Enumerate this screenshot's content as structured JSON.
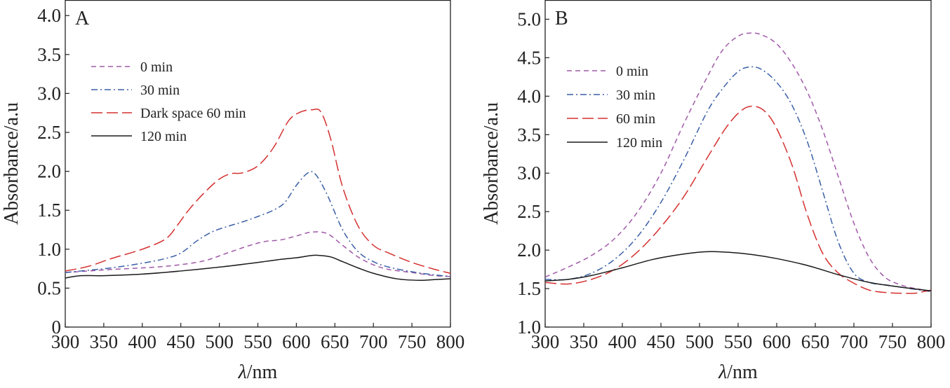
{
  "chart_data": [
    {
      "type": "line",
      "panel_label": "A",
      "xlabel_symbol": "λ",
      "xlabel_unit": "/nm",
      "ylabel": "Absorbance/a.u",
      "xlim": [
        300,
        800
      ],
      "ylim": [
        0,
        4.2
      ],
      "xticks": [
        300,
        350,
        400,
        450,
        500,
        550,
        600,
        650,
        700,
        750,
        800
      ],
      "xtick_labels": [
        "300",
        "350",
        "400",
        "450",
        "500",
        "550",
        "600",
        "650",
        "700",
        "750",
        "800"
      ],
      "yticks": [
        0,
        0.5,
        1.0,
        1.5,
        2.0,
        2.5,
        3.0,
        3.5,
        4.0
      ],
      "ytick_labels": [
        "0",
        "0.5",
        "1.0",
        "1.5",
        "2.0",
        "2.5",
        "3.0",
        "3.5",
        "4.0"
      ],
      "grid": false,
      "legend_position": "upper-left",
      "series": [
        {
          "name": "0 min",
          "color": "#a05aa8",
          "dash": "dashed",
          "x": [
            300,
            330,
            360,
            400,
            440,
            480,
            510,
            540,
            560,
            580,
            600,
            620,
            640,
            660,
            680,
            700,
            720,
            750,
            780,
            800
          ],
          "y": [
            0.7,
            0.72,
            0.74,
            0.76,
            0.79,
            0.85,
            0.95,
            1.05,
            1.1,
            1.12,
            1.17,
            1.22,
            1.2,
            1.05,
            0.9,
            0.8,
            0.74,
            0.7,
            0.66,
            0.65
          ]
        },
        {
          "name": "30 min",
          "color": "#3a5fa6",
          "dash": "dashdot",
          "x": [
            300,
            330,
            360,
            400,
            430,
            450,
            470,
            490,
            510,
            530,
            550,
            570,
            585,
            600,
            615,
            625,
            640,
            660,
            680,
            700,
            720,
            750,
            780,
            800
          ],
          "y": [
            0.7,
            0.73,
            0.76,
            0.82,
            0.88,
            0.95,
            1.1,
            1.22,
            1.29,
            1.35,
            1.42,
            1.5,
            1.6,
            1.82,
            1.98,
            1.96,
            1.7,
            1.25,
            0.97,
            0.84,
            0.77,
            0.71,
            0.67,
            0.65
          ]
        },
        {
          "name": "Dark space 60 min",
          "color": "#d4302f",
          "dash": "longdash",
          "x": [
            300,
            330,
            360,
            400,
            430,
            445,
            460,
            480,
            500,
            515,
            530,
            550,
            570,
            590,
            605,
            620,
            632,
            645,
            660,
            680,
            700,
            720,
            750,
            780,
            800
          ],
          "y": [
            0.72,
            0.78,
            0.88,
            1.0,
            1.13,
            1.3,
            1.5,
            1.72,
            1.9,
            1.97,
            1.98,
            2.07,
            2.3,
            2.65,
            2.76,
            2.79,
            2.76,
            2.4,
            1.8,
            1.3,
            1.05,
            0.95,
            0.83,
            0.74,
            0.69
          ]
        },
        {
          "name": "120 min",
          "color": "#1a1a1a",
          "dash": "solid",
          "x": [
            300,
            320,
            350,
            400,
            450,
            500,
            550,
            580,
            600,
            620,
            630,
            645,
            660,
            680,
            700,
            730,
            760,
            780,
            800
          ],
          "y": [
            0.63,
            0.66,
            0.66,
            0.68,
            0.72,
            0.77,
            0.83,
            0.87,
            0.89,
            0.92,
            0.92,
            0.9,
            0.84,
            0.76,
            0.69,
            0.62,
            0.6,
            0.61,
            0.62
          ]
        }
      ]
    },
    {
      "type": "line",
      "panel_label": "B",
      "xlabel_symbol": "λ",
      "xlabel_unit": "/nm",
      "ylabel": "Absorbance/a.u",
      "xlim": [
        300,
        800
      ],
      "ylim": [
        1.0,
        5.25
      ],
      "xticks": [
        300,
        350,
        400,
        450,
        500,
        550,
        600,
        650,
        700,
        750,
        800
      ],
      "xtick_labels": [
        "300",
        "350",
        "400",
        "450",
        "500",
        "550",
        "600",
        "650",
        "700",
        "750",
        "800"
      ],
      "yticks": [
        1.0,
        1.5,
        2.0,
        2.5,
        3.0,
        3.5,
        4.0,
        4.5,
        5.0
      ],
      "ytick_labels": [
        "1.0",
        "1.5",
        "2.0",
        "2.5",
        "3.0",
        "3.5",
        "4.0",
        "4.5",
        "5.0"
      ],
      "grid": false,
      "legend_position": "upper-left",
      "series": [
        {
          "name": "0 min",
          "color": "#a05aa8",
          "dash": "dashed",
          "x": [
            300,
            330,
            360,
            390,
            420,
            450,
            480,
            510,
            530,
            550,
            565,
            580,
            600,
            620,
            640,
            660,
            680,
            700,
            720,
            740,
            760,
            780,
            800
          ],
          "y": [
            1.65,
            1.78,
            1.93,
            2.15,
            2.5,
            3.0,
            3.65,
            4.25,
            4.6,
            4.78,
            4.82,
            4.8,
            4.68,
            4.42,
            4.05,
            3.55,
            2.95,
            2.35,
            1.9,
            1.65,
            1.55,
            1.5,
            1.47
          ]
        },
        {
          "name": "30 min",
          "color": "#3a5fa6",
          "dash": "dashdot",
          "x": [
            300,
            330,
            360,
            390,
            420,
            450,
            480,
            510,
            530,
            550,
            565,
            580,
            600,
            620,
            640,
            660,
            680,
            700,
            720,
            740,
            760,
            780,
            800
          ],
          "y": [
            1.62,
            1.62,
            1.7,
            1.88,
            2.18,
            2.62,
            3.18,
            3.8,
            4.1,
            4.32,
            4.38,
            4.35,
            4.18,
            3.88,
            3.4,
            2.75,
            2.1,
            1.7,
            1.58,
            1.55,
            1.52,
            1.49,
            1.46
          ]
        },
        {
          "name": "60 min",
          "color": "#d4302f",
          "dash": "longdash",
          "x": [
            300,
            330,
            360,
            390,
            420,
            450,
            480,
            510,
            535,
            555,
            570,
            585,
            600,
            620,
            640,
            660,
            680,
            700,
            720,
            740,
            760,
            780,
            790,
            800
          ],
          "y": [
            1.58,
            1.56,
            1.62,
            1.75,
            1.98,
            2.3,
            2.7,
            3.2,
            3.6,
            3.82,
            3.87,
            3.8,
            3.58,
            3.1,
            2.45,
            1.95,
            1.7,
            1.57,
            1.48,
            1.45,
            1.44,
            1.44,
            1.46,
            1.48
          ]
        },
        {
          "name": "120 min",
          "color": "#1a1a1a",
          "dash": "solid",
          "x": [
            300,
            330,
            360,
            400,
            440,
            480,
            510,
            540,
            570,
            600,
            640,
            680,
            720,
            760,
            800
          ],
          "y": [
            1.6,
            1.62,
            1.67,
            1.77,
            1.88,
            1.95,
            1.98,
            1.97,
            1.94,
            1.89,
            1.8,
            1.68,
            1.58,
            1.52,
            1.47
          ]
        }
      ]
    }
  ]
}
